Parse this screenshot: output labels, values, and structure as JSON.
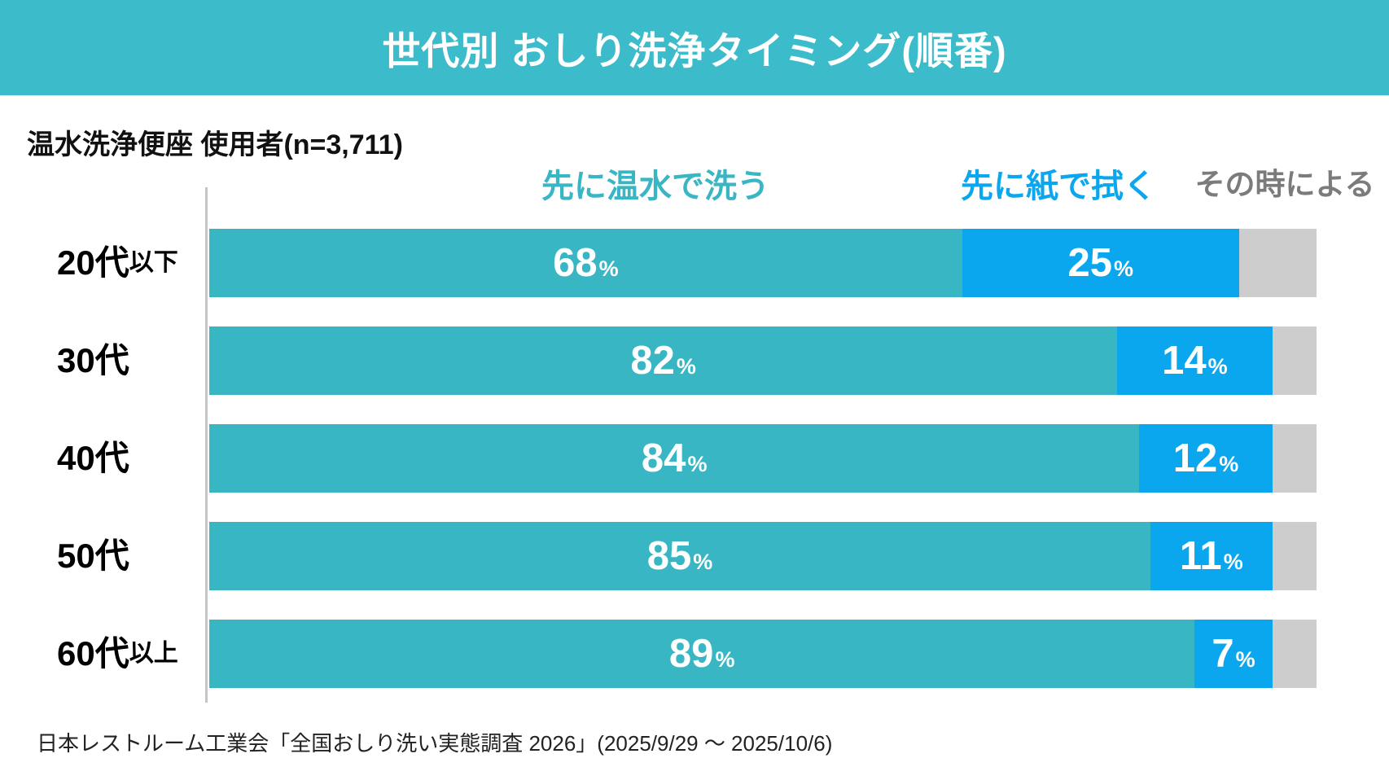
{
  "palette": {
    "header_bg": "#3CBCCA",
    "wash": "#38B6C4",
    "paper": "#0AA7EE",
    "depends": "#CDCDCD",
    "legend_depends_text": "#7B7B7B",
    "axis_line": "#C5C5C5"
  },
  "header": {
    "title": "世代別 おしり洗浄タイミング(順番)"
  },
  "subtitle": "温水洗浄便座 使用者(n=3,711)",
  "legend": {
    "wash_first": "先に温水で洗う",
    "paper_first": "先に紙で拭く",
    "depends": "その時による"
  },
  "footer": "日本レストルーム工業会「全国おしり洗い実態調査 2026」(2025/9/29 ～ 2025/10/6)",
  "chart_data": {
    "type": "bar",
    "orientation": "horizontal",
    "stacked": true,
    "title": "世代別 おしり洗浄タイミング(順番)",
    "subtitle": "温水洗浄便座 使用者(n=3,711)",
    "categories": [
      "20代以下",
      "30代",
      "40代",
      "50代",
      "60代以上"
    ],
    "category_labels": [
      {
        "main": "20代",
        "suffix": "以下"
      },
      {
        "main": "30代",
        "suffix": ""
      },
      {
        "main": "40代",
        "suffix": ""
      },
      {
        "main": "50代",
        "suffix": ""
      },
      {
        "main": "60代",
        "suffix": "以上"
      }
    ],
    "series": [
      {
        "name": "先に温水で洗う",
        "color": "#38B6C4",
        "values": [
          68,
          82,
          84,
          85,
          89
        ]
      },
      {
        "name": "先に紙で拭く",
        "color": "#0AA7EE",
        "values": [
          25,
          14,
          12,
          11,
          7
        ]
      },
      {
        "name": "その時による",
        "color": "#CDCDCD",
        "values": [
          7,
          4,
          4,
          4,
          4
        ]
      }
    ],
    "xlim": [
      0,
      100
    ],
    "unit": "%",
    "grid": "off",
    "legend_position": "top",
    "value_labels_shown_for": [
      "先に温水で洗う",
      "先に紙で拭く"
    ],
    "source": "日本レストルーム工業会「全国おしり洗い実態調査 2026」(2025/9/29 ～ 2025/10/6)"
  }
}
